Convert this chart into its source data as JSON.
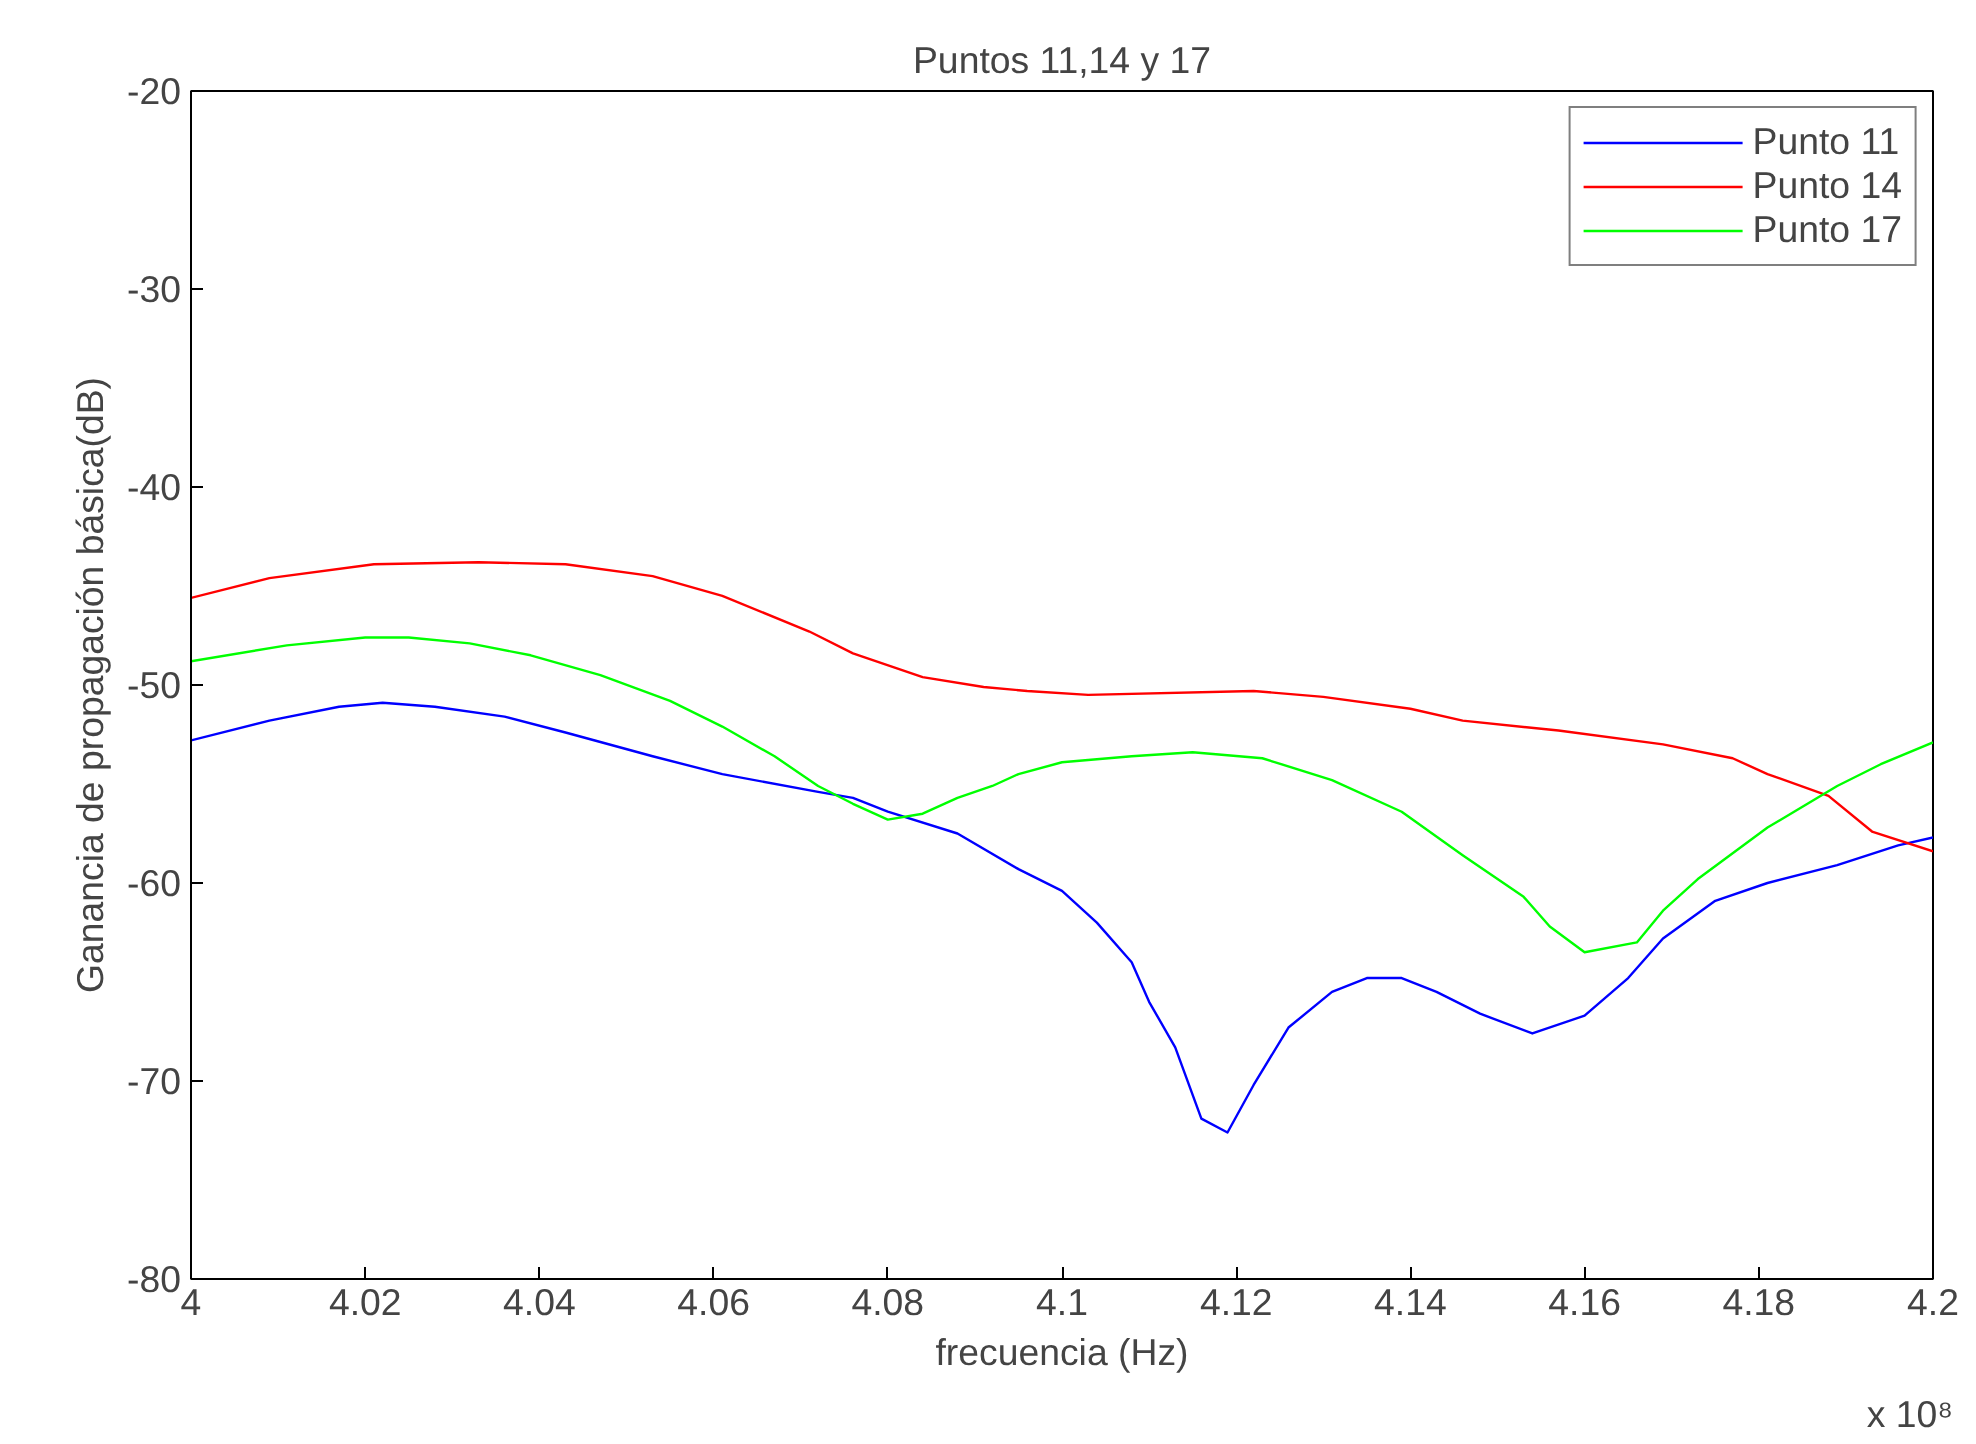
{
  "chart_data": {
    "type": "line",
    "title": "Puntos 11,14 y 17",
    "xlabel": "frecuencia (Hz)",
    "ylabel": "Ganancia de propagación básica(dB)",
    "annotations": [
      "x 10⁸"
    ],
    "xlim": [
      4,
      4.2
    ],
    "ylim": [
      -80,
      -20
    ],
    "xticks": [
      4,
      4.02,
      4.04,
      4.06,
      4.08,
      4.1,
      4.12,
      4.14,
      4.16,
      4.18,
      4.2
    ],
    "yticks": [
      -80,
      -70,
      -60,
      -50,
      -40,
      -30,
      -20
    ],
    "grid": false,
    "legend": "top right",
    "marker": "none",
    "line_style": "solid",
    "series": [
      {
        "name": "Punto 11",
        "color": "#0000ff",
        "x": [
          4.0,
          4.009,
          4.017,
          4.022,
          4.028,
          4.036,
          4.043,
          4.053,
          4.061,
          4.072,
          4.076,
          4.08,
          4.088,
          4.095,
          4.1,
          4.104,
          4.108,
          4.11,
          4.113,
          4.116,
          4.119,
          4.122,
          4.126,
          4.131,
          4.135,
          4.139,
          4.143,
          4.148,
          4.154,
          4.16,
          4.165,
          4.169,
          4.175,
          4.181,
          4.189,
          4.196,
          4.2
        ],
        "values": [
          -52.8,
          -51.8,
          -51.1,
          -50.9,
          -51.1,
          -51.6,
          -52.4,
          -53.6,
          -54.5,
          -55.4,
          -55.7,
          -56.4,
          -57.5,
          -59.3,
          -60.4,
          -62.0,
          -64.0,
          -66.0,
          -68.3,
          -71.9,
          -72.6,
          -70.2,
          -67.3,
          -65.5,
          -64.8,
          -64.8,
          -65.5,
          -66.6,
          -67.6,
          -66.7,
          -64.8,
          -62.8,
          -60.9,
          -60.0,
          -59.1,
          -58.1,
          -57.7
        ]
      },
      {
        "name": "Punto 14",
        "color": "#ff0000",
        "x": [
          4.0,
          4.009,
          4.021,
          4.033,
          4.043,
          4.053,
          4.061,
          4.071,
          4.076,
          4.084,
          4.091,
          4.096,
          4.103,
          4.122,
          4.13,
          4.14,
          4.146,
          4.157,
          4.169,
          4.177,
          4.181,
          4.188,
          4.193,
          4.2
        ],
        "values": [
          -45.6,
          -44.6,
          -43.9,
          -43.8,
          -43.9,
          -44.5,
          -45.5,
          -47.3,
          -48.4,
          -49.6,
          -50.1,
          -50.3,
          -50.5,
          -50.3,
          -50.6,
          -51.2,
          -51.8,
          -52.3,
          -53.0,
          -53.7,
          -54.5,
          -55.6,
          -57.4,
          -58.4
        ]
      },
      {
        "name": "Punto 17",
        "color": "#00ff00",
        "x": [
          4.0,
          4.011,
          4.02,
          4.025,
          4.032,
          4.039,
          4.047,
          4.055,
          4.061,
          4.067,
          4.072,
          4.076,
          4.08,
          4.084,
          4.088,
          4.092,
          4.095,
          4.1,
          4.108,
          4.115,
          4.123,
          4.131,
          4.139,
          4.146,
          4.153,
          4.156,
          4.16,
          4.166,
          4.169,
          4.173,
          4.181,
          4.189,
          4.194,
          4.2
        ],
        "values": [
          -48.8,
          -48.0,
          -47.6,
          -47.6,
          -47.9,
          -48.5,
          -49.5,
          -50.8,
          -52.1,
          -53.6,
          -55.1,
          -56.0,
          -56.8,
          -56.5,
          -55.7,
          -55.1,
          -54.5,
          -53.9,
          -53.6,
          -53.4,
          -53.7,
          -54.8,
          -56.4,
          -58.6,
          -60.7,
          -62.2,
          -63.5,
          -63.0,
          -61.4,
          -59.8,
          -57.2,
          -55.1,
          -54.0,
          -52.9
        ]
      }
    ]
  }
}
